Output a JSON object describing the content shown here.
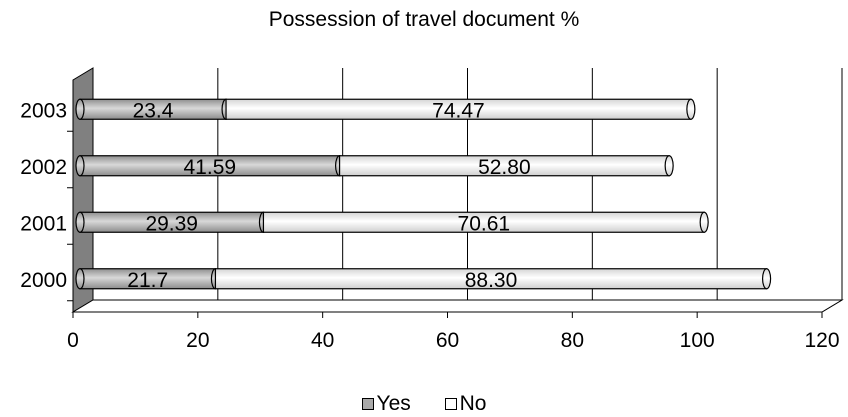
{
  "chart_data": {
    "type": "bar",
    "orientation": "horizontal",
    "stacked": true,
    "title": "Possession of travel document %",
    "categories": [
      "2003",
      "2002",
      "2001",
      "2000"
    ],
    "series": [
      {
        "name": "Yes",
        "values": [
          23.4,
          41.59,
          29.39,
          21.7
        ],
        "labels": [
          "23.4",
          "41.59",
          "29.39",
          "21.7"
        ],
        "color": "#a9a9a9"
      },
      {
        "name": "No",
        "values": [
          74.47,
          52.8,
          70.61,
          88.3
        ],
        "labels": [
          "74.47",
          "52.80",
          "70.61",
          "88.30"
        ],
        "color": "#f2f2f2"
      }
    ],
    "xlim": [
      0,
      120
    ],
    "xticks": [
      "0",
      "20",
      "40",
      "60",
      "80",
      "100",
      "120"
    ],
    "grid": true,
    "legend": "bottom",
    "colors": {
      "wall": "#808080",
      "outline": "#000000"
    }
  }
}
